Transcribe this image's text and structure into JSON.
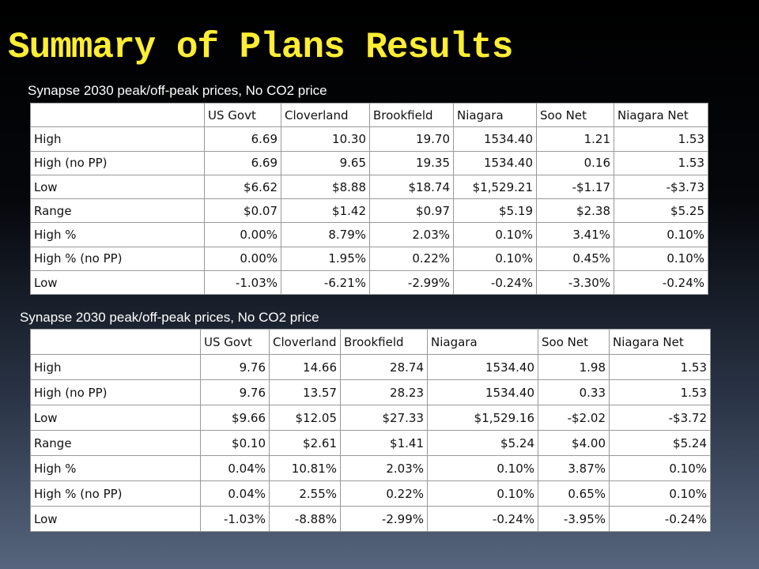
{
  "title": "Summary of Plans Results",
  "tables": [
    {
      "caption": "Synapse 2030 peak/off-peak prices, No CO2 price",
      "header": [
        "",
        "US Govt",
        "Cloverland",
        "Brookfield",
        "Niagara",
        "Soo Net",
        "Niagara Net"
      ],
      "rows": [
        [
          "High",
          "6.69",
          "10.30",
          "19.70",
          "1534.40",
          "1.21",
          "1.53"
        ],
        [
          "High (no PP)",
          "6.69",
          "9.65",
          "19.35",
          "1534.40",
          "0.16",
          "1.53"
        ],
        [
          "Low",
          "$6.62",
          "$8.88",
          "$18.74",
          "$1,529.21",
          "-$1.17",
          "-$3.73"
        ],
        [
          "Range",
          "$0.07",
          "$1.42",
          "$0.97",
          "$5.19",
          "$2.38",
          "$5.25"
        ],
        [
          "High %",
          "0.00%",
          "8.79%",
          "2.03%",
          "0.10%",
          "3.41%",
          "0.10%"
        ],
        [
          "High % (no PP)",
          "0.00%",
          "1.95%",
          "0.22%",
          "0.10%",
          "0.45%",
          "0.10%"
        ],
        [
          "Low",
          "-1.03%",
          "-6.21%",
          "-2.99%",
          "-0.24%",
          "-3.30%",
          "-0.24%"
        ]
      ]
    },
    {
      "caption": "Synapse 2030 peak/off-peak prices, No CO2 price",
      "header": [
        "",
        "US Govt",
        "Cloverland",
        "Brookfield",
        "Niagara",
        "Soo Net",
        "Niagara Net"
      ],
      "rows": [
        [
          "High",
          "9.76",
          "14.66",
          "28.74",
          "1534.40",
          "1.98",
          "1.53"
        ],
        [
          "High (no PP)",
          "9.76",
          "13.57",
          "28.23",
          "1534.40",
          "0.33",
          "1.53"
        ],
        [
          "Low",
          "$9.66",
          "$12.05",
          "$27.33",
          "$1,529.16",
          "-$2.02",
          "-$3.72"
        ],
        [
          "Range",
          "$0.10",
          "$2.61",
          "$1.41",
          "$5.24",
          "$4.00",
          "$5.24"
        ],
        [
          "High %",
          "0.04%",
          "10.81%",
          "2.03%",
          "0.10%",
          "3.87%",
          "0.10%"
        ],
        [
          "High % (no PP)",
          "0.04%",
          "2.55%",
          "0.22%",
          "0.10%",
          "0.65%",
          "0.10%"
        ],
        [
          "Low",
          "-1.03%",
          "-8.88%",
          "-2.99%",
          "-0.24%",
          "-3.95%",
          "-0.24%"
        ]
      ]
    }
  ]
}
